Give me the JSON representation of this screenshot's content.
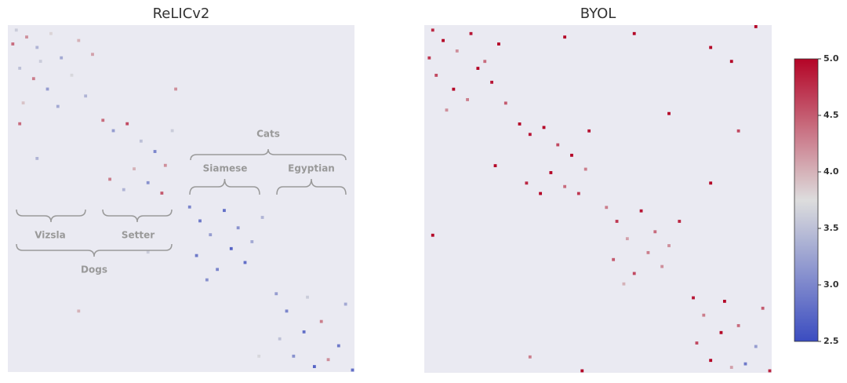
{
  "chart_data": [
    {
      "type": "heatmap",
      "title": "ReLICv2",
      "xlim": [
        0,
        100
      ],
      "ylim": [
        0,
        100
      ],
      "clim": [
        2.5,
        5.0
      ],
      "colors": [
        "#3b4cc0",
        "#dddddd",
        "#b40426"
      ],
      "background": "#eaeaf2",
      "annotations": [
        "Cats",
        "Siamese",
        "Egyptian",
        "Vizsla",
        "Setter",
        "Dogs"
      ],
      "x": [
        2,
        5,
        8,
        12,
        15,
        20,
        3,
        7,
        11,
        18,
        22,
        4,
        14,
        9,
        24,
        1,
        27,
        30,
        34,
        38,
        42,
        45,
        29,
        33,
        40,
        47,
        36,
        44,
        52,
        55,
        58,
        62,
        66,
        70,
        54,
        60,
        68,
        73,
        57,
        64,
        77,
        80,
        85,
        90,
        95,
        82,
        88,
        97,
        92,
        78,
        99,
        86,
        48,
        40,
        8,
        3,
        72,
        20
      ],
      "y": [
        1,
        3,
        6,
        2,
        9,
        4,
        12,
        15,
        18,
        14,
        20,
        22,
        23,
        10,
        8,
        5,
        27,
        30,
        28,
        33,
        36,
        40,
        44,
        47,
        45,
        30,
        41,
        48,
        52,
        56,
        60,
        53,
        58,
        62,
        66,
        70,
        68,
        55,
        73,
        64,
        77,
        82,
        88,
        85,
        92,
        95,
        98,
        80,
        96,
        90,
        99,
        78,
        18,
        65,
        38,
        28,
        95,
        82
      ],
      "values": [
        3.6,
        4.2,
        3.4,
        3.8,
        3.3,
        4.0,
        3.5,
        4.3,
        3.2,
        3.7,
        3.4,
        3.9,
        3.3,
        3.6,
        4.1,
        4.4,
        4.4,
        3.2,
        4.6,
        3.5,
        3.0,
        4.2,
        4.3,
        3.4,
        3.1,
        3.6,
        4.0,
        4.5,
        3.0,
        2.9,
        3.2,
        2.8,
        3.1,
        3.3,
        2.9,
        3.0,
        2.8,
        3.4,
        3.1,
        2.7,
        3.2,
        3.0,
        2.8,
        4.3,
        2.9,
        3.1,
        2.7,
        3.3,
        4.2,
        3.5,
        2.8,
        3.6,
        4.2,
        3.6,
        3.4,
        4.4,
        3.7,
        4.0
      ]
    },
    {
      "type": "heatmap",
      "title": "BYOL",
      "xlim": [
        0,
        100
      ],
      "ylim": [
        0,
        100
      ],
      "clim": [
        2.5,
        5.0
      ],
      "colors": [
        "#3b4cc0",
        "#dddddd",
        "#b40426"
      ],
      "background": "#eaeaf2",
      "colorbar_ticks": [
        2.5,
        {
          "value": 3,
          "label": "3.0"
        },
        3.5,
        {
          "value": 4,
          "label": "4.0"
        },
        4.5,
        {
          "value": 5,
          "label": "5.0"
        }
      ],
      "x": [
        2,
        5,
        9,
        13,
        17,
        21,
        3,
        8,
        12,
        19,
        23,
        6,
        15,
        1,
        27,
        30,
        34,
        38,
        42,
        46,
        29,
        33,
        40,
        47,
        36,
        44,
        52,
        55,
        58,
        62,
        66,
        70,
        54,
        60,
        68,
        73,
        57,
        64,
        77,
        80,
        85,
        90,
        95,
        82,
        88,
        97,
        92,
        78,
        99,
        86,
        40,
        60,
        82,
        95,
        70,
        2,
        20,
        90,
        30,
        82,
        45,
        88
      ],
      "y": [
        1,
        4,
        7,
        2,
        10,
        5,
        14,
        18,
        21,
        16,
        22,
        24,
        12,
        9,
        28,
        31,
        29,
        34,
        37,
        41,
        45,
        48,
        46,
        30,
        42,
        48,
        52,
        56,
        61,
        53,
        59,
        63,
        67,
        71,
        69,
        56,
        74,
        65,
        78,
        83,
        88,
        86,
        92,
        96,
        98,
        81,
        97,
        91,
        99,
        79,
        3,
        2,
        6,
        0,
        25,
        60,
        40,
        30,
        95,
        45,
        99,
        10
      ],
      "values": [
        4.8,
        5.0,
        4.2,
        4.9,
        4.4,
        5.0,
        4.6,
        5.0,
        4.3,
        4.9,
        4.5,
        4.2,
        5.0,
        4.7,
        5.0,
        4.9,
        5.0,
        4.6,
        5.0,
        4.3,
        4.8,
        5.0,
        4.4,
        4.9,
        5.0,
        4.7,
        4.3,
        4.7,
        4.1,
        4.9,
        4.4,
        4.2,
        4.5,
        4.6,
        4.2,
        4.8,
        4.0,
        4.3,
        4.9,
        4.3,
        5.0,
        4.4,
        3.2,
        5.0,
        4.1,
        4.5,
        2.9,
        4.6,
        4.8,
        5.0,
        5.0,
        5.0,
        5.0,
        5.0,
        5.0,
        5.0,
        5.0,
        4.6,
        4.3,
        5.0,
        5.0,
        5.0
      ]
    }
  ]
}
